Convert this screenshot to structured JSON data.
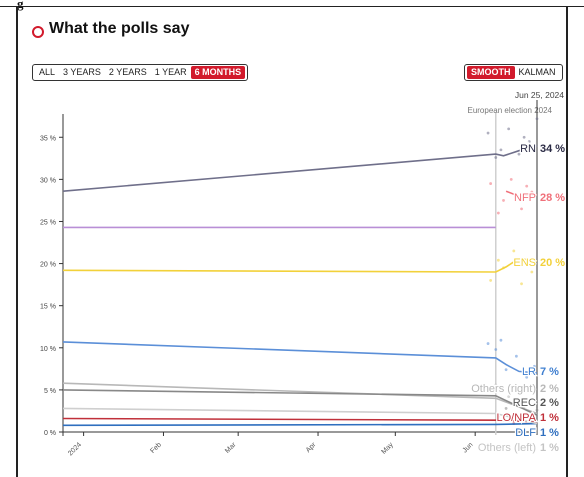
{
  "page": {
    "title": "What the polls say",
    "header_fragment": "g"
  },
  "controls": {
    "range_buttons": [
      {
        "label": "ALL",
        "active": false
      },
      {
        "label": "3 YEARS",
        "active": false
      },
      {
        "label": "2 YEARS",
        "active": false
      },
      {
        "label": "1 YEAR",
        "active": false
      },
      {
        "label": "6 MONTHS",
        "active": true
      }
    ],
    "mode_buttons": [
      {
        "label": "SMOOTH",
        "active": true
      },
      {
        "label": "KALMAN",
        "active": false
      }
    ]
  },
  "colors": {
    "accent": "#d21a2c",
    "RN": "#6f6f8a",
    "NFP": "#f0707a",
    "ENS": "#f2d13a",
    "LR": "#5b8fd8",
    "REC": "#888888",
    "LO_NPA": "#c0303a",
    "DLF": "#2f6fbf",
    "Others_right": "#b8b8b8",
    "Others_left": "#cfcfcf",
    "purple": "#b98fd6"
  },
  "chart_data": {
    "type": "line",
    "ylim": [
      0,
      38
    ],
    "y_ticks": [
      0,
      5,
      10,
      15,
      20,
      25,
      30,
      35
    ],
    "y_tick_labels": [
      "0 %",
      "5 %",
      "10 %",
      "15 %",
      "20 %",
      "25 %",
      "30 %",
      "35 %"
    ],
    "x_tick_labels": [
      "2024",
      "Feb",
      "Mar",
      "Apr",
      "May",
      "Jun"
    ],
    "x_tick_dates": [
      "2024-01-01",
      "2024-02-01",
      "2024-03-01",
      "2024-04-01",
      "2024-05-01",
      "2024-06-01"
    ],
    "x_range": [
      "2023-12-24",
      "2024-06-25"
    ],
    "annotation": {
      "date": "2024-06-09",
      "label": "European election 2024"
    },
    "cursor": {
      "date": "2024-06-25",
      "label": "Jun 25, 2024"
    },
    "series": [
      {
        "name": "RN",
        "label": "RN",
        "value_label": "34 %",
        "color_key": "RN",
        "points": [
          [
            "2023-12-24",
            28.6
          ],
          [
            "2024-06-09",
            33.0
          ],
          [
            "2024-06-12",
            32.8
          ],
          [
            "2024-06-18",
            33.4
          ],
          [
            "2024-06-25",
            34.0
          ]
        ]
      },
      {
        "name": "NFP",
        "label": "NFP",
        "value_label": "28 %",
        "color_key": "NFP",
        "points": [
          [
            "2024-06-13",
            28.6
          ],
          [
            "2024-06-18",
            28.0
          ],
          [
            "2024-06-25",
            28.2
          ]
        ]
      },
      {
        "name": "",
        "label": "",
        "value_label": "",
        "color_key": "purple",
        "points": [
          [
            "2023-12-24",
            24.3
          ],
          [
            "2024-06-09",
            24.3
          ]
        ]
      },
      {
        "name": "ENS",
        "label": "ENS",
        "value_label": "20 %",
        "color_key": "ENS",
        "points": [
          [
            "2023-12-24",
            19.2
          ],
          [
            "2024-06-09",
            19.0
          ],
          [
            "2024-06-13",
            19.6
          ],
          [
            "2024-06-18",
            20.6
          ],
          [
            "2024-06-25",
            20.3
          ]
        ]
      },
      {
        "name": "LR",
        "label": "LR",
        "value_label": "7 %",
        "color_key": "LR",
        "points": [
          [
            "2023-12-24",
            10.7
          ],
          [
            "2024-06-09",
            8.8
          ],
          [
            "2024-06-13",
            8.0
          ],
          [
            "2024-06-18",
            7.2
          ],
          [
            "2024-06-25",
            7.0
          ]
        ]
      },
      {
        "name": "Others (right)",
        "label": "Others (right)",
        "value_label": "2 %",
        "color_key": "Others_right",
        "points": [
          [
            "2023-12-24",
            5.8
          ],
          [
            "2024-06-09",
            4.0
          ],
          [
            "2024-06-25",
            2.2
          ]
        ]
      },
      {
        "name": "REC",
        "label": "REC",
        "value_label": "2 %",
        "color_key": "REC",
        "points": [
          [
            "2023-12-24",
            5.0
          ],
          [
            "2024-06-09",
            4.3
          ],
          [
            "2024-06-25",
            2.0
          ]
        ]
      },
      {
        "name": "LO/NPA",
        "label": "LO/NPA",
        "value_label": "1 %",
        "color_key": "LO_NPA",
        "points": [
          [
            "2023-12-24",
            1.6
          ],
          [
            "2024-06-09",
            1.4
          ],
          [
            "2024-06-25",
            1.2
          ]
        ]
      },
      {
        "name": "DLF",
        "label": "DLF",
        "value_label": "1 %",
        "color_key": "DLF",
        "points": [
          [
            "2023-12-24",
            0.8
          ],
          [
            "2024-06-09",
            0.9
          ],
          [
            "2024-06-25",
            1.0
          ]
        ]
      },
      {
        "name": "Others (left)",
        "label": "Others (left)",
        "value_label": "1 %",
        "color_key": "Others_left",
        "points": [
          [
            "2023-12-24",
            2.8
          ],
          [
            "2024-06-09",
            2.2
          ],
          [
            "2024-06-25",
            1.0
          ]
        ]
      }
    ],
    "poll_scatter": [
      {
        "color_key": "RN",
        "values": [
          [
            6,
            35.5
          ],
          [
            11,
            33.5
          ],
          [
            14,
            36.0
          ],
          [
            18,
            33.0
          ],
          [
            22,
            34.5
          ],
          [
            25,
            37.2
          ],
          [
            9,
            32.6
          ],
          [
            20,
            35.0
          ]
        ]
      },
      {
        "color_key": "NFP",
        "values": [
          [
            7,
            29.5
          ],
          [
            12,
            27.5
          ],
          [
            15,
            30.0
          ],
          [
            19,
            26.5
          ],
          [
            23,
            28.5
          ],
          [
            10,
            26.0
          ],
          [
            21,
            29.2
          ]
        ]
      },
      {
        "color_key": "ENS",
        "values": [
          [
            7,
            18.0
          ],
          [
            12,
            19.5
          ],
          [
            16,
            21.5
          ],
          [
            19,
            17.6
          ],
          [
            23,
            19.0
          ],
          [
            10,
            20.4
          ]
        ]
      },
      {
        "color_key": "LR",
        "values": [
          [
            6,
            10.5
          ],
          [
            9,
            9.8
          ],
          [
            13,
            7.4
          ],
          [
            17,
            9.0
          ],
          [
            21,
            6.5
          ],
          [
            24,
            7.8
          ],
          [
            11,
            10.9
          ]
        ]
      },
      {
        "color_key": "REC",
        "values": [
          [
            8,
            4.8
          ],
          [
            13,
            2.8
          ],
          [
            18,
            3.5
          ],
          [
            22,
            1.8
          ],
          [
            25,
            2.6
          ]
        ]
      },
      {
        "color_key": "Others_right",
        "values": [
          [
            9,
            5.6
          ],
          [
            14,
            4.2
          ],
          [
            20,
            3.0
          ]
        ]
      },
      {
        "color_key": "LO_NPA",
        "values": [
          [
            10,
            1.8
          ],
          [
            16,
            1.0
          ],
          [
            24,
            1.5
          ]
        ]
      }
    ]
  }
}
